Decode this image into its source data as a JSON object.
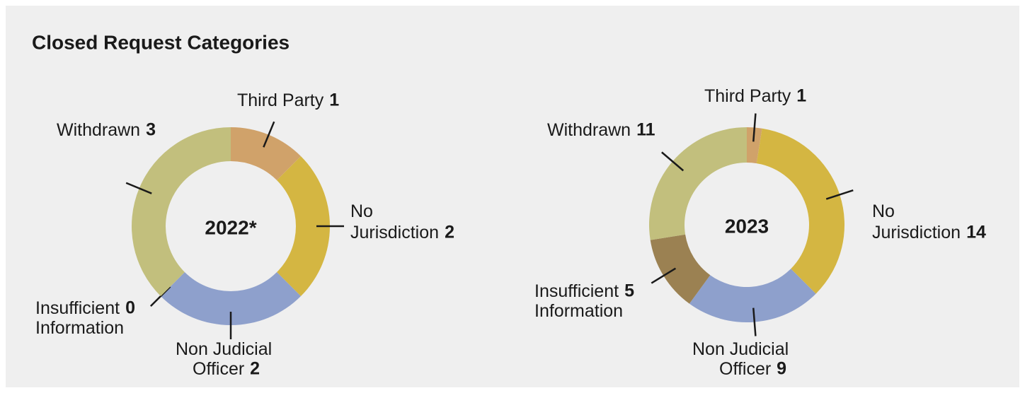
{
  "title": "Closed Request Categories",
  "chart_data": [
    {
      "type": "donut",
      "center_label": "2022*",
      "categories": [
        "Third Party",
        "No Jurisdiction",
        "Non Judicial Officer",
        "Insufficient Information",
        "Withdrawn"
      ],
      "values": [
        1,
        2,
        2,
        0,
        3
      ],
      "colors": [
        "#d0a26a",
        "#d4b642",
        "#8ea0cc",
        "#9b8152",
        "#c2bf7d"
      ]
    },
    {
      "type": "donut",
      "center_label": "2023",
      "categories": [
        "Third Party",
        "No Jurisdiction",
        "Non Judicial Officer",
        "Insufficient Information",
        "Withdrawn"
      ],
      "values": [
        1,
        14,
        9,
        5,
        11
      ],
      "colors": [
        "#d0a26a",
        "#d4b642",
        "#8ea0cc",
        "#9b8152",
        "#c2bf7d"
      ]
    }
  ]
}
